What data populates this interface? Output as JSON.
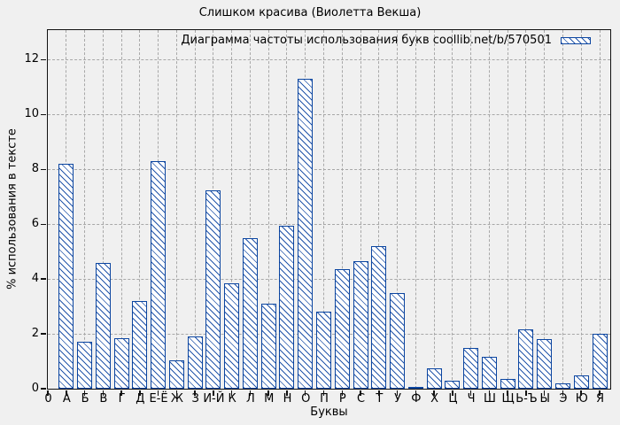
{
  "chart_data": {
    "type": "bar",
    "title": "Слишком красива (Виолетта Векша)",
    "xlabel": "Буквы",
    "ylabel": "% использования в тексте",
    "legend_entries": [
      "Диаграмма частоты использования букв coollib.net/b/570501"
    ],
    "legend_position": "top-right-inside-plot",
    "grid": true,
    "origin_tick_label": "0",
    "categories": [
      "А",
      "Б",
      "В",
      "Г",
      "Д",
      "Е-Ё",
      "Ж",
      "З",
      "И-Й",
      "К",
      "Л",
      "М",
      "Н",
      "О",
      "П",
      "Р",
      "С",
      "Т",
      "У",
      "Ф",
      "Х",
      "Ц",
      "Ч",
      "Ш",
      "Щ",
      "Ь-Ъ",
      "Ы",
      "Э",
      "Ю",
      "Я"
    ],
    "values": [
      8.2,
      1.7,
      4.6,
      1.85,
      3.2,
      8.3,
      1.05,
      1.9,
      7.25,
      3.85,
      5.5,
      3.1,
      5.95,
      11.3,
      2.8,
      4.35,
      4.65,
      5.2,
      3.5,
      0.05,
      0.75,
      0.3,
      1.5,
      1.15,
      0.35,
      2.15,
      1.8,
      0.2,
      0.5,
      2.0
    ],
    "yticks": [
      0,
      2,
      4,
      6,
      8,
      10,
      12
    ],
    "ylim": [
      0,
      13.05
    ],
    "bar_style": "diagonal-hatch",
    "colors": {
      "background": "#f0f0f0",
      "bar_border": "#0b45a0",
      "bar_hatch": "#2456aa",
      "bar_fill": "#ffffff",
      "grid": "#a8a8a8",
      "axis": "#111111",
      "text": "#000000"
    }
  }
}
